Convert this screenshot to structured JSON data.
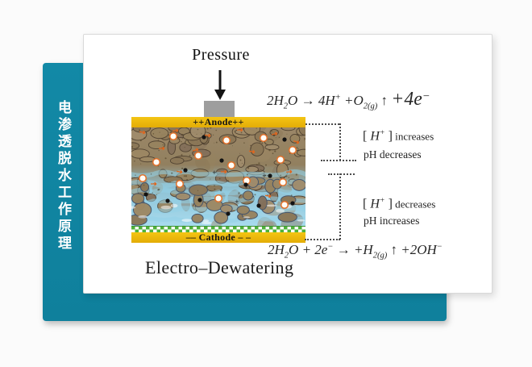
{
  "slide": {
    "vertical_title": "电渗透脱水工作原理",
    "pressure_label": "Pressure",
    "anode_label": "++Anode++",
    "cathode_label": "–– Cathode – –",
    "diagram_title": "Electro–Dewatering",
    "equations": {
      "anode": [
        {
          "t": "2H",
          "s": "n"
        },
        {
          "t": "2",
          "s": "sub"
        },
        {
          "t": "O",
          "s": "n"
        },
        {
          "t": " → ",
          "s": "n"
        },
        {
          "t": "4H",
          "s": "n"
        },
        {
          "t": "+",
          "s": "sup"
        },
        {
          "t": " +O",
          "s": "n"
        },
        {
          "t": "2(g)",
          "s": "sub"
        },
        {
          "t": " ↑ ",
          "s": "br"
        },
        {
          "t": "+4e",
          "s": "lg"
        },
        {
          "t": "−",
          "s": "lgsup"
        }
      ],
      "cathode": [
        {
          "t": "2H",
          "s": "n"
        },
        {
          "t": "2",
          "s": "sub"
        },
        {
          "t": "O + 2e",
          "s": "n"
        },
        {
          "t": "−",
          "s": "sup"
        },
        {
          "t": " → +H",
          "s": "n"
        },
        {
          "t": "2(g)",
          "s": "sub"
        },
        {
          "t": " ↑ ",
          "s": "br"
        },
        {
          "t": "+2OH",
          "s": "n"
        },
        {
          "t": "−",
          "s": "sup"
        }
      ]
    },
    "annotations": {
      "anode_region_line1": [
        {
          "t": "[ ",
          "s": "br"
        },
        {
          "t": "H",
          "s": "n"
        },
        {
          "t": "+",
          "s": "sup"
        },
        {
          "t": " ]",
          "s": "br"
        },
        {
          "t": " increases",
          "s": "sm"
        }
      ],
      "anode_region_line2": "pH decreases",
      "cathode_region_line1": [
        {
          "t": "[ ",
          "s": "br"
        },
        {
          "t": "H",
          "s": "n"
        },
        {
          "t": "+",
          "s": "sup"
        },
        {
          "t": " ]",
          "s": "br"
        },
        {
          "t": " decreases",
          "s": "sm"
        }
      ],
      "cathode_region_line2": "pH increases"
    },
    "colors": {
      "backdrop_teal": "#1186a4",
      "electrode_gold": "#edb90e",
      "pressure_plate_gray": "#9e9e9e",
      "filter_green": "#4fb23a",
      "water_blue": "#a7dbee",
      "soil_brown": "#9a8566",
      "bubble_ring_orange": "#e2702a",
      "ink": "#222222"
    }
  }
}
